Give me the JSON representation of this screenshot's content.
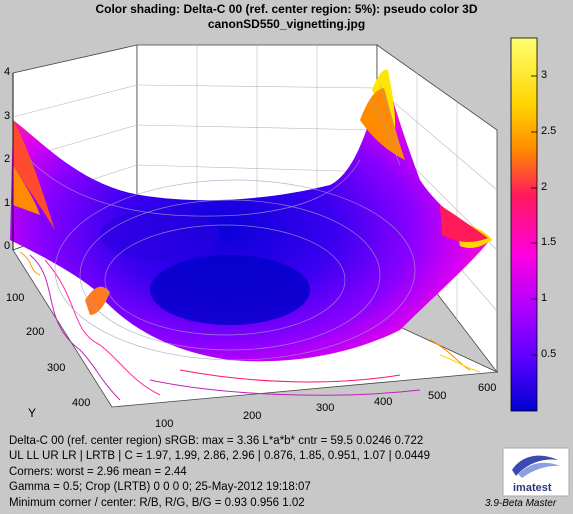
{
  "window": {
    "title_line1": "Color shading:  Delta-C 00  (ref. center region: 5%):  pseudo color 3D",
    "title_line2": "canonSD550_vignetting.jpg"
  },
  "plot": {
    "z_ticks": [
      "4",
      "3",
      "2",
      "1",
      "0"
    ],
    "y_ticks": [
      "100",
      "200",
      "300",
      "400"
    ],
    "y_label": "Y",
    "x_ticks": [
      "100",
      "200",
      "300",
      "400",
      "500",
      "600"
    ]
  },
  "colorbar": {
    "ticks": [
      "3",
      "2.5",
      "2",
      "1.5",
      "1",
      "0.5"
    ],
    "colors": [
      "#ffff70",
      "#ffd400",
      "#ff8a00",
      "#ff1a5a",
      "#ff00e0",
      "#b000ff",
      "#5a00ff",
      "#0000d0"
    ]
  },
  "stats": {
    "line1": "Delta-C 00  (ref. center region)  sRGB:  max = 3.36  L*a*b* cntr = 59.5 0.0246 0.722",
    "line2": "UL LL UR LR | LRTB | C = 1.97, 1.99, 2.86, 2.96 | 0.876, 1.85, 0.951, 1.07 | 0.0449",
    "line3": "Corners: worst = 2.96  mean = 2.44",
    "line4": "Gamma = 0.5;   Crop (LRTB)  0  0  0  0;   25-May-2012 19:18:07",
    "line5": "Minimum corner / center: R/B, R/G, B/G = 0.93      0.956      1.02"
  },
  "branding": {
    "logo_text": "imatest",
    "version": "3.9-Beta  Master"
  }
}
